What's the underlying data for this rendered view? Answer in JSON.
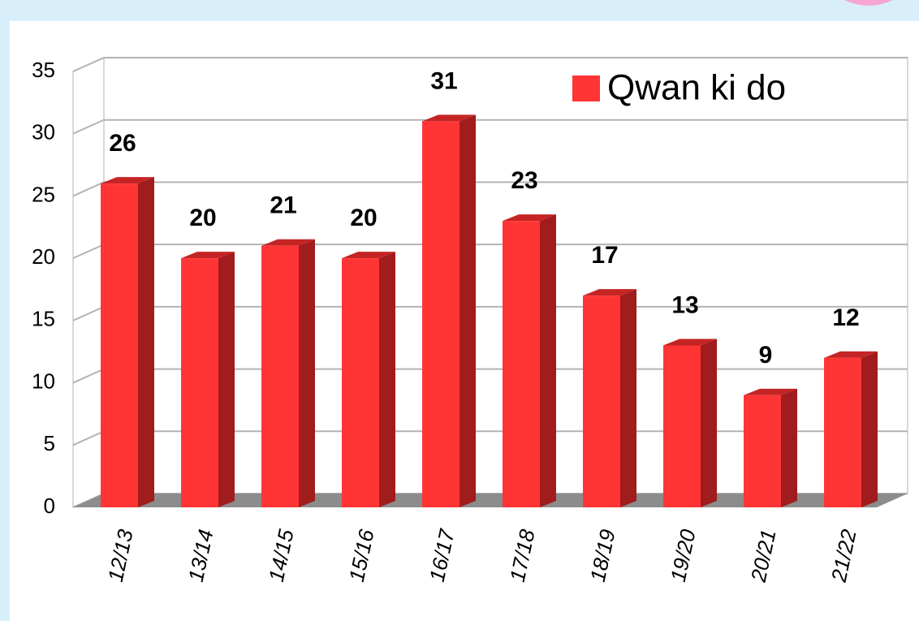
{
  "chart_data": {
    "type": "bar",
    "categories": [
      "12/13",
      "13/14",
      "14/15",
      "15/16",
      "16/17",
      "17/18",
      "18/19",
      "19/20",
      "20/21",
      "21/22"
    ],
    "series": [
      {
        "name": "Qwan ki do",
        "color": "#ff3535",
        "values": [
          26,
          20,
          21,
          20,
          31,
          23,
          17,
          13,
          9,
          12
        ]
      }
    ],
    "ylim": [
      0,
      35
    ],
    "yticks": [
      0,
      5,
      10,
      15,
      20,
      25,
      30,
      35
    ],
    "grid": true,
    "legend": "top-right"
  }
}
